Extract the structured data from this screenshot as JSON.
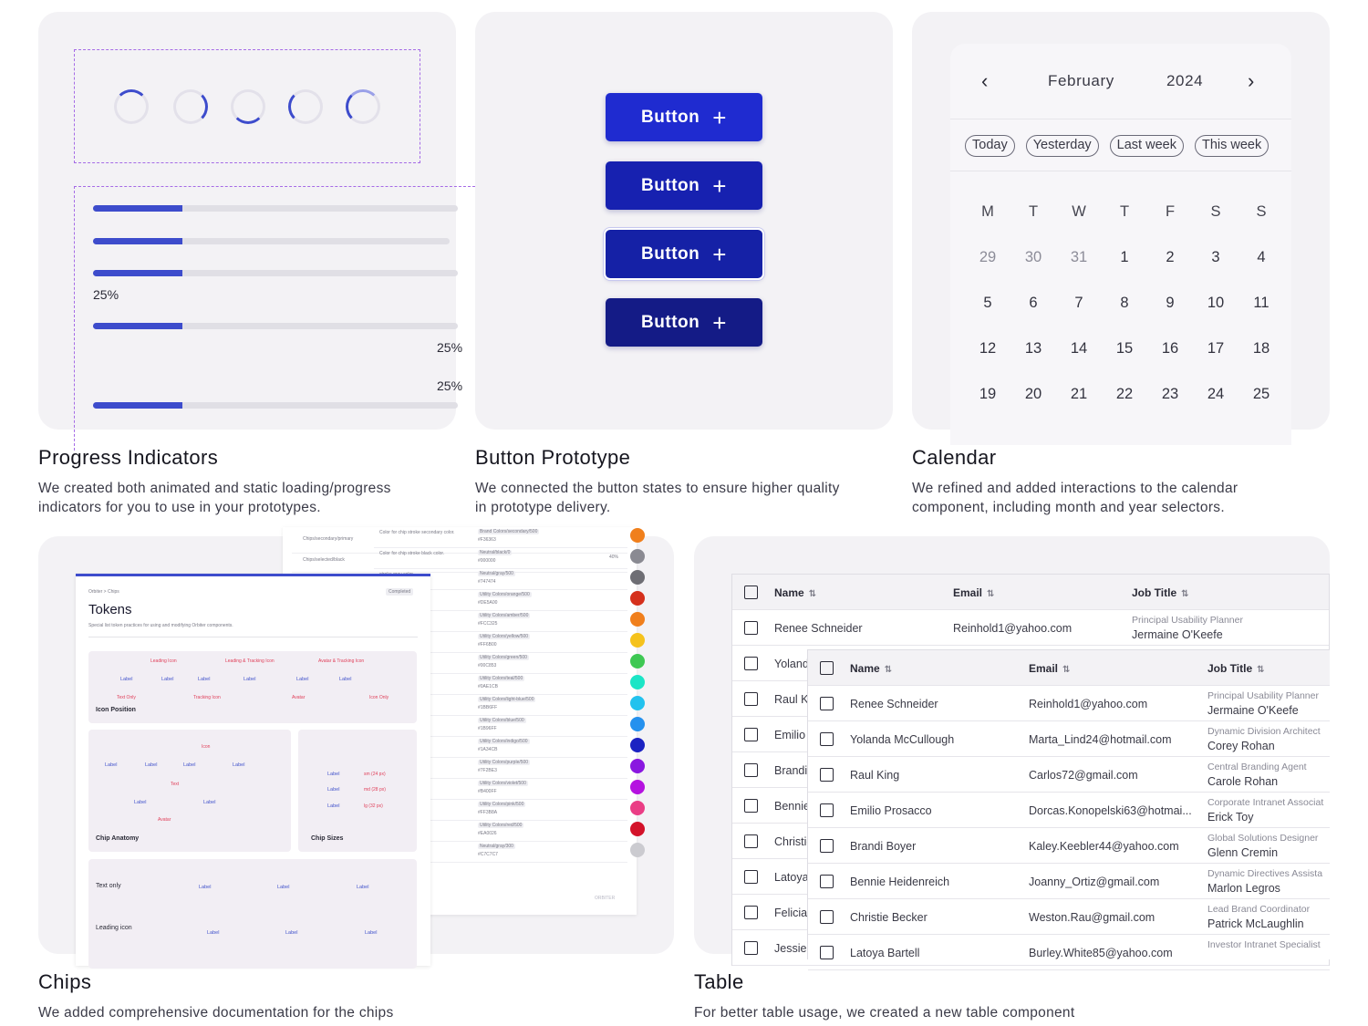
{
  "sections": {
    "progress": {
      "title": "Progress Indicators",
      "desc_line1": "We created both animated and static loading/progress",
      "desc_line2": "indicators for you to use in your prototypes.",
      "percent_a": "25%",
      "percent_b": "25%",
      "percent_c": "25%",
      "progress_value": 0.25
    },
    "button": {
      "title": "Button Prototype",
      "desc_line1": "We connected the button states to ensure higher quality",
      "desc_line2": "in prototype delivery.",
      "button_label": "Button",
      "button_colors": [
        "#1f2bd0",
        "#1721b0",
        "#1521a6",
        "#141b86"
      ]
    },
    "calendar": {
      "title": "Calendar",
      "desc_line1": "We refined and added interactions to the calendar",
      "desc_line2": "component, including month and year selectors.",
      "month": "February",
      "year": "2024",
      "quick": [
        "Today",
        "Yesterday",
        "Last week",
        "This week"
      ],
      "weekdays": [
        "M",
        "T",
        "W",
        "T",
        "F",
        "S",
        "S"
      ],
      "days": [
        [
          "29",
          "30",
          "31",
          "1",
          "2",
          "3",
          "4"
        ],
        [
          "5",
          "6",
          "7",
          "8",
          "9",
          "10",
          "11"
        ],
        [
          "12",
          "13",
          "14",
          "15",
          "16",
          "17",
          "18"
        ],
        [
          "19",
          "20",
          "21",
          "22",
          "23",
          "24",
          "25"
        ]
      ]
    },
    "chips": {
      "title": "Chips",
      "desc_line1": "We added comprehensive documentation for the chips",
      "doc_title": "Tokens",
      "doc_subtitle": "Special list token practices for using and modifying Orbiter components.",
      "breadcrumb": "Orbiter > Chips",
      "badge": "Completed",
      "icon_position": "Icon Position",
      "chip_anatomy": "Chip Anatomy",
      "chip_sizes": "Chip Sizes",
      "text_only": "Text only",
      "leading_icon": "Leading icon",
      "leading_icon_small": "Leading Icon",
      "leading_tracking": "Leading & Tracking Icon",
      "avatar_tracking": "Avatar & Tracking Icon",
      "chip_label": "Label",
      "text_only_small": "Text Only",
      "tracking_icon": "Tracking Icon",
      "avatar": "Avatar",
      "icon_only": "Icon Only",
      "icon": "Icon",
      "text": "Text",
      "sizes": [
        "sm (24 px)",
        "md (28 px)",
        "lg (32 px)"
      ],
      "token_rows": [
        {
          "desc": "Color for chip stroke secondary color.",
          "token": "Brand Colors/secondary/500",
          "hex": "#F36363",
          "color": "#f07f1c"
        },
        {
          "desc": "Color for chip stroke black color.",
          "token": "Neutral/black/0",
          "hex": "#000000",
          "color": "#8a8a92",
          "pct": "40%"
        },
        {
          "desc": "stroke gray color.",
          "token": "Neutral/gray/500",
          "hex": "#747474",
          "color": "#6e6e74"
        },
        {
          "desc": "stroke orange color.",
          "token": "Utility Colors/orange/500",
          "hex": "#DE5A00",
          "color": "#d5301c"
        },
        {
          "desc": "stroke amber color.",
          "token": "Utility Colors/amber/500",
          "hex": "#FCC325",
          "color": "#f07f1c"
        },
        {
          "desc": "stroke yellow color.",
          "token": "Utility Colors/yellow/500",
          "hex": "#FF6B00",
          "color": "#f5c21c"
        },
        {
          "desc": "stroke green color.",
          "token": "Utility Colors/green/500",
          "hex": "#00C853",
          "color": "#3ec853"
        },
        {
          "desc": "stroke teal color.",
          "token": "Utility Colors/teal/500",
          "hex": "#0AE1CB",
          "color": "#1be5c6"
        },
        {
          "desc": "stroke light blue color.",
          "token": "Utility Colors/light-blue/500",
          "hex": "#1BB6FF",
          "color": "#22c2ee"
        },
        {
          "desc": "stroke blue color.",
          "token": "Utility Colors/blue/500",
          "hex": "#1B96FF",
          "color": "#2591ee"
        },
        {
          "desc": "stroke indigo color.",
          "token": "Utility Colors/indigo/500",
          "hex": "#1A34CB",
          "color": "#1b22c2"
        },
        {
          "desc": "stroke purple color.",
          "token": "Utility Colors/purple/500",
          "hex": "#7F2BE3",
          "color": "#8a17e0"
        },
        {
          "desc": "stroke violet color.",
          "token": "Utility Colors/violet/500",
          "hex": "#B400FF",
          "color": "#b512e0"
        },
        {
          "desc": "stroke pink color.",
          "token": "Utility Colors/pink/500",
          "hex": "#FF3B8A",
          "color": "#ea3d85"
        },
        {
          "desc": "stroke red color.",
          "token": "Utility Colors/red/500",
          "hex": "#EA0026",
          "color": "#d31229"
        },
        {
          "desc": "stroke disable.",
          "token": "Neutral/gray/300",
          "hex": "#C7C7C7",
          "color": "#cbcbd0"
        }
      ],
      "top_tokens": [
        "Chips/secondary/primary",
        "Chips/selected/black"
      ],
      "footer": "ORBITER"
    },
    "table": {
      "title": "Table",
      "desc_line1": "For better table usage, we created a new table component",
      "headers": {
        "name": "Name",
        "email": "Email",
        "job": "Job Title"
      },
      "back_rows": [
        {
          "name": "Renee Schneider",
          "email": "Reinhold1@yahoo.com",
          "job_top": "Principal Usability Planner",
          "job_bottom": "Jermaine O'Keefe"
        },
        {
          "name": "Yolanda"
        },
        {
          "name": "Raul K"
        },
        {
          "name": "Emilio"
        },
        {
          "name": "Brandi"
        },
        {
          "name": "Bennie"
        },
        {
          "name": "Christie"
        },
        {
          "name": "Latoya"
        },
        {
          "name": "Felicia"
        },
        {
          "name": "Jessie"
        }
      ],
      "front_rows": [
        {
          "name": "Renee Schneider",
          "email": "Reinhold1@yahoo.com",
          "job_top": "Principal Usability Planner",
          "job_bottom": "Jermaine O'Keefe"
        },
        {
          "name": "Yolanda McCullough",
          "email": "Marta_Lind24@hotmail.com",
          "job_top": "Dynamic Division Architect",
          "job_bottom": "Corey Rohan"
        },
        {
          "name": "Raul King",
          "email": "Carlos72@gmail.com",
          "job_top": "Central Branding Agent",
          "job_bottom": "Carole Rohan"
        },
        {
          "name": "Emilio Prosacco",
          "email": "Dorcas.Konopelski63@hotmai...",
          "job_top": "Corporate Intranet Associat",
          "job_bottom": "Erick Toy"
        },
        {
          "name": "Brandi Boyer",
          "email": "Kaley.Keebler44@yahoo.com",
          "job_top": "Global Solutions Designer",
          "job_bottom": "Glenn Cremin"
        },
        {
          "name": "Bennie Heidenreich",
          "email": "Joanny_Ortiz@gmail.com",
          "job_top": "Dynamic Directives Assista",
          "job_bottom": "Marlon Legros"
        },
        {
          "name": "Christie Becker",
          "email": "Weston.Rau@gmail.com",
          "job_top": "Lead Brand Coordinator",
          "job_bottom": "Patrick McLaughlin"
        },
        {
          "name": "Latoya Bartell",
          "email": "Burley.White85@yahoo.com",
          "job_top": "Investor Intranet Specialist",
          "job_bottom": ""
        }
      ]
    }
  }
}
